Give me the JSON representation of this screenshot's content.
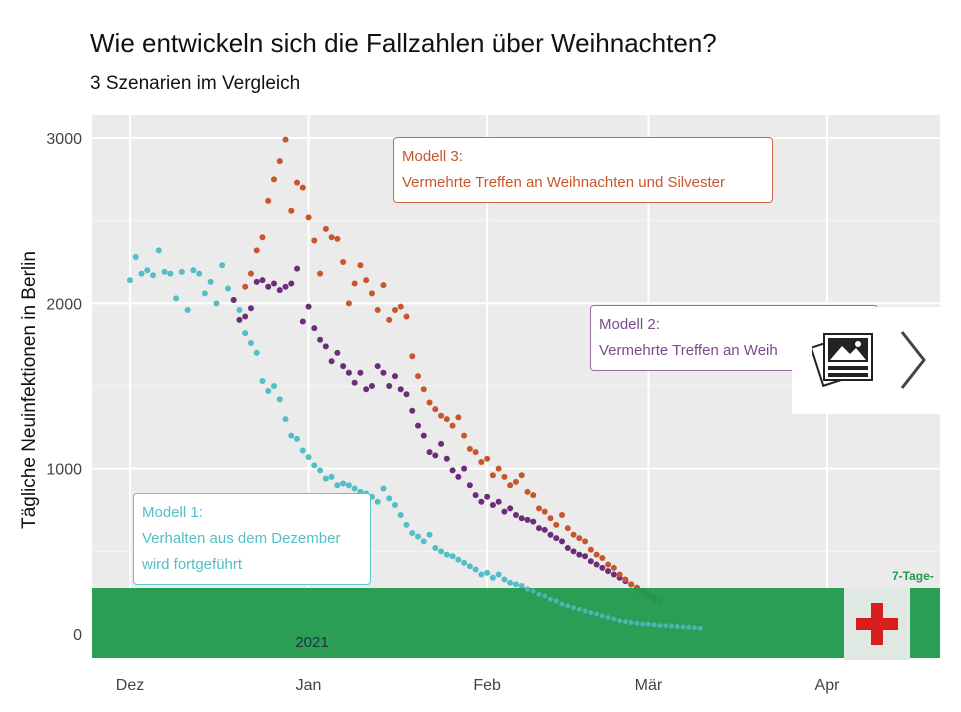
{
  "title": "Wie entwickeln sich die Fallzahlen über Weihnachten?",
  "subtitle": "3 Szenarien im Vergleich",
  "ylabel": "Tägliche Neuinfektionen in Berlin",
  "year_label": "2021",
  "tag_label": "7-Tage-",
  "annotations": {
    "model1": {
      "line1": "Modell 1:",
      "line2": "Verhalten aus dem Dezember",
      "line3": "wird fortgeführt"
    },
    "model2": {
      "line1": "Modell 2:",
      "line2": "Vermehrte Treffen an Weih"
    },
    "model3": {
      "line1": "Modell 3:",
      "line2": "Vermehrte Treffen an Weihnachten und Silvester"
    }
  },
  "overlay": {
    "gallery_icon": "image-gallery-icon",
    "next_icon": "chevron-right-icon",
    "badge_icon": "red-cross-icon"
  },
  "colors": {
    "model1": "#52bfc7",
    "model2": "#6b2d7a",
    "model3": "#c8562c",
    "panel": "#ebebeb",
    "band": "#1f9a4c"
  },
  "chart_data": {
    "type": "scatter",
    "x_axis": {
      "type": "date",
      "ticks": [
        "Dez",
        "Jan",
        "Feb",
        "Mär",
        "Apr"
      ],
      "tick_dates": [
        "2020-12-01",
        "2021-01-01",
        "2021-02-01",
        "2021-03-01",
        "2021-04-01"
      ]
    },
    "y_axis": {
      "ticks": [
        0,
        1000,
        2000,
        3000
      ],
      "ylim": [
        -150,
        3000
      ]
    },
    "grid": true,
    "series": [
      {
        "name": "Modell 1",
        "color": "#52bfc7",
        "x_start": "2020-12-01",
        "points": [
          [
            0,
            2140
          ],
          [
            1,
            2280
          ],
          [
            2,
            2180
          ],
          [
            3,
            2200
          ],
          [
            4,
            2170
          ],
          [
            5,
            2320
          ],
          [
            6,
            2190
          ],
          [
            7,
            2180
          ],
          [
            8,
            2030
          ],
          [
            9,
            2190
          ],
          [
            10,
            1960
          ],
          [
            11,
            2200
          ],
          [
            12,
            2180
          ],
          [
            13,
            2060
          ],
          [
            14,
            2130
          ],
          [
            15,
            2000
          ],
          [
            16,
            2230
          ],
          [
            17,
            2090
          ],
          [
            18,
            2020
          ],
          [
            19,
            1960
          ],
          [
            20,
            1820
          ],
          [
            21,
            1760
          ],
          [
            22,
            1700
          ],
          [
            23,
            1530
          ],
          [
            24,
            1470
          ],
          [
            25,
            1500
          ],
          [
            26,
            1420
          ],
          [
            27,
            1300
          ],
          [
            28,
            1200
          ],
          [
            29,
            1180
          ],
          [
            30,
            1110
          ],
          [
            31,
            1070
          ],
          [
            32,
            1020
          ],
          [
            33,
            990
          ],
          [
            34,
            940
          ],
          [
            35,
            950
          ],
          [
            36,
            900
          ],
          [
            37,
            910
          ],
          [
            38,
            900
          ],
          [
            39,
            880
          ],
          [
            40,
            860
          ],
          [
            41,
            850
          ],
          [
            42,
            830
          ],
          [
            43,
            800
          ],
          [
            44,
            880
          ],
          [
            45,
            820
          ],
          [
            46,
            780
          ],
          [
            47,
            720
          ],
          [
            48,
            660
          ],
          [
            49,
            610
          ],
          [
            50,
            590
          ],
          [
            51,
            560
          ],
          [
            52,
            600
          ],
          [
            53,
            520
          ],
          [
            54,
            500
          ],
          [
            55,
            480
          ],
          [
            56,
            470
          ],
          [
            57,
            450
          ],
          [
            58,
            430
          ],
          [
            59,
            410
          ],
          [
            60,
            390
          ],
          [
            61,
            360
          ],
          [
            62,
            370
          ],
          [
            63,
            340
          ],
          [
            64,
            360
          ],
          [
            65,
            330
          ],
          [
            66,
            310
          ],
          [
            67,
            300
          ],
          [
            68,
            290
          ],
          [
            69,
            270
          ],
          [
            70,
            260
          ],
          [
            71,
            240
          ],
          [
            72,
            230
          ],
          [
            73,
            210
          ],
          [
            74,
            200
          ],
          [
            75,
            180
          ],
          [
            76,
            170
          ],
          [
            77,
            160
          ],
          [
            78,
            150
          ],
          [
            79,
            140
          ],
          [
            80,
            130
          ],
          [
            81,
            120
          ],
          [
            82,
            110
          ],
          [
            83,
            100
          ],
          [
            84,
            90
          ],
          [
            85,
            80
          ],
          [
            86,
            75
          ],
          [
            87,
            70
          ],
          [
            88,
            65
          ],
          [
            89,
            60
          ],
          [
            90,
            60
          ],
          [
            91,
            55
          ],
          [
            92,
            50
          ],
          [
            93,
            50
          ],
          [
            94,
            48
          ],
          [
            95,
            45
          ],
          [
            96,
            42
          ],
          [
            97,
            40
          ],
          [
            98,
            38
          ],
          [
            99,
            35
          ]
        ]
      },
      {
        "name": "Modell 2",
        "color": "#6b2d7a",
        "x_start": "2020-12-01",
        "points": [
          [
            18,
            2020
          ],
          [
            19,
            1900
          ],
          [
            20,
            1920
          ],
          [
            21,
            1970
          ],
          [
            22,
            2130
          ],
          [
            23,
            2140
          ],
          [
            24,
            2100
          ],
          [
            25,
            2120
          ],
          [
            26,
            2080
          ],
          [
            27,
            2100
          ],
          [
            28,
            2120
          ],
          [
            29,
            2210
          ],
          [
            30,
            1890
          ],
          [
            31,
            1980
          ],
          [
            32,
            1850
          ],
          [
            33,
            1780
          ],
          [
            34,
            1740
          ],
          [
            35,
            1650
          ],
          [
            36,
            1700
          ],
          [
            37,
            1620
          ],
          [
            38,
            1580
          ],
          [
            39,
            1520
          ],
          [
            40,
            1580
          ],
          [
            41,
            1480
          ],
          [
            42,
            1500
          ],
          [
            43,
            1620
          ],
          [
            44,
            1580
          ],
          [
            45,
            1500
          ],
          [
            46,
            1560
          ],
          [
            47,
            1480
          ],
          [
            48,
            1450
          ],
          [
            49,
            1350
          ],
          [
            50,
            1260
          ],
          [
            51,
            1200
          ],
          [
            52,
            1100
          ],
          [
            53,
            1080
          ],
          [
            54,
            1150
          ],
          [
            55,
            1060
          ],
          [
            56,
            990
          ],
          [
            57,
            950
          ],
          [
            58,
            1000
          ],
          [
            59,
            900
          ],
          [
            60,
            840
          ],
          [
            61,
            800
          ],
          [
            62,
            830
          ],
          [
            63,
            780
          ],
          [
            64,
            800
          ],
          [
            65,
            740
          ],
          [
            66,
            760
          ],
          [
            67,
            720
          ],
          [
            68,
            700
          ],
          [
            69,
            690
          ],
          [
            70,
            680
          ],
          [
            71,
            640
          ],
          [
            72,
            630
          ],
          [
            73,
            600
          ],
          [
            74,
            580
          ],
          [
            75,
            560
          ],
          [
            76,
            520
          ],
          [
            77,
            500
          ],
          [
            78,
            480
          ],
          [
            79,
            470
          ],
          [
            80,
            440
          ],
          [
            81,
            420
          ],
          [
            82,
            400
          ],
          [
            83,
            380
          ],
          [
            84,
            360
          ],
          [
            85,
            340
          ],
          [
            86,
            320
          ],
          [
            87,
            300
          ],
          [
            88,
            280
          ],
          [
            89,
            260
          ],
          [
            90,
            240
          ],
          [
            91,
            220
          ],
          [
            92,
            200
          ]
        ]
      },
      {
        "name": "Modell 3",
        "color": "#c8562c",
        "x_start": "2020-12-01",
        "points": [
          [
            20,
            2100
          ],
          [
            21,
            2180
          ],
          [
            22,
            2320
          ],
          [
            23,
            2400
          ],
          [
            24,
            2620
          ],
          [
            25,
            2750
          ],
          [
            26,
            2860
          ],
          [
            27,
            2990
          ],
          [
            28,
            2560
          ],
          [
            29,
            2730
          ],
          [
            30,
            2700
          ],
          [
            31,
            2520
          ],
          [
            32,
            2380
          ],
          [
            33,
            2180
          ],
          [
            34,
            2450
          ],
          [
            35,
            2400
          ],
          [
            36,
            2390
          ],
          [
            37,
            2250
          ],
          [
            38,
            2000
          ],
          [
            39,
            2120
          ],
          [
            40,
            2230
          ],
          [
            41,
            2140
          ],
          [
            42,
            2060
          ],
          [
            43,
            1960
          ],
          [
            44,
            2110
          ],
          [
            45,
            1900
          ],
          [
            46,
            1960
          ],
          [
            47,
            1980
          ],
          [
            48,
            1920
          ],
          [
            49,
            1680
          ],
          [
            50,
            1560
          ],
          [
            51,
            1480
          ],
          [
            52,
            1400
          ],
          [
            53,
            1360
          ],
          [
            54,
            1320
          ],
          [
            55,
            1300
          ],
          [
            56,
            1260
          ],
          [
            57,
            1310
          ],
          [
            58,
            1200
          ],
          [
            59,
            1120
          ],
          [
            60,
            1100
          ],
          [
            61,
            1040
          ],
          [
            62,
            1060
          ],
          [
            63,
            960
          ],
          [
            64,
            1000
          ],
          [
            65,
            950
          ],
          [
            66,
            900
          ],
          [
            67,
            920
          ],
          [
            68,
            960
          ],
          [
            69,
            860
          ],
          [
            70,
            840
          ],
          [
            71,
            760
          ],
          [
            72,
            740
          ],
          [
            73,
            700
          ],
          [
            74,
            660
          ],
          [
            75,
            720
          ],
          [
            76,
            640
          ],
          [
            77,
            600
          ],
          [
            78,
            580
          ],
          [
            79,
            560
          ],
          [
            80,
            510
          ],
          [
            81,
            480
          ],
          [
            82,
            460
          ],
          [
            83,
            420
          ],
          [
            84,
            400
          ],
          [
            85,
            360
          ],
          [
            86,
            330
          ],
          [
            87,
            300
          ],
          [
            88,
            280
          ],
          [
            89,
            250
          ],
          [
            90,
            230
          ],
          [
            91,
            210
          ],
          [
            92,
            200
          ]
        ]
      }
    ]
  }
}
